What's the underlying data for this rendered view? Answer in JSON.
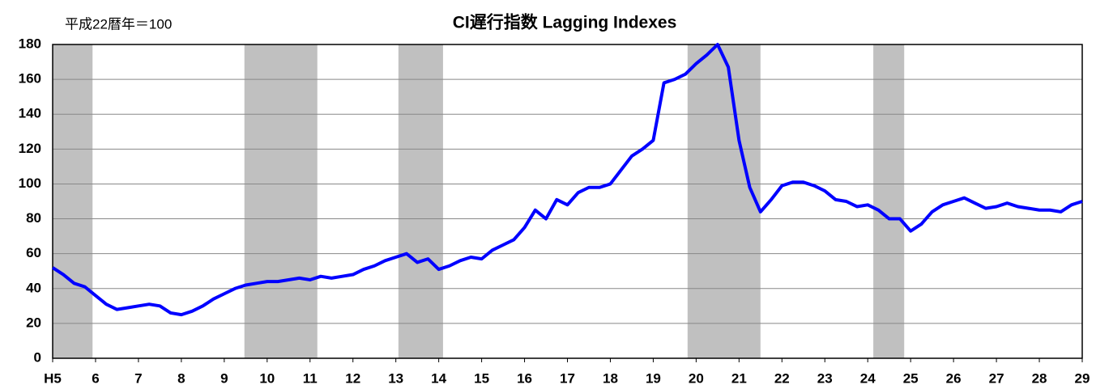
{
  "chart_data": {
    "type": "line",
    "title": "CI遅行指数 Lagging Indexes",
    "subtitle": "平成22暦年＝100",
    "x": [
      5,
      5.25,
      5.5,
      5.75,
      6,
      6.25,
      6.5,
      6.75,
      7,
      7.25,
      7.5,
      7.75,
      8,
      8.25,
      8.5,
      8.75,
      9,
      9.25,
      9.5,
      9.75,
      10,
      10.25,
      10.5,
      10.75,
      11,
      11.25,
      11.5,
      11.75,
      12,
      12.25,
      12.5,
      12.75,
      13,
      13.25,
      13.5,
      13.75,
      14,
      14.25,
      14.5,
      14.75,
      15,
      15.25,
      15.5,
      15.75,
      16,
      16.25,
      16.5,
      16.75,
      17,
      17.25,
      17.5,
      17.75,
      18,
      18.25,
      18.5,
      18.75,
      19,
      19.25,
      19.5,
      19.75,
      20,
      20.25,
      20.5,
      20.75,
      21,
      21.25,
      21.5,
      21.75,
      22,
      22.25,
      22.5,
      22.75,
      23,
      23.25,
      23.5,
      23.75,
      24,
      24.25,
      24.5,
      24.75,
      25,
      25.25,
      25.5,
      25.75,
      26,
      26.25,
      26.5,
      26.75,
      27,
      27.25,
      27.5,
      27.75,
      28,
      28.25,
      28.5,
      28.75,
      29
    ],
    "series": [
      {
        "color": "#0000ff",
        "values": [
          52,
          48,
          43,
          41,
          36,
          31,
          28,
          29,
          30,
          31,
          30,
          26,
          25,
          27,
          30,
          34,
          37,
          40,
          42,
          43,
          44,
          44,
          45,
          46,
          45,
          47,
          46,
          47,
          48,
          51,
          53,
          56,
          58,
          60,
          55,
          57,
          51,
          53,
          56,
          58,
          57,
          62,
          65,
          68,
          75,
          85,
          80,
          91,
          88,
          95,
          98,
          98,
          100,
          108,
          116,
          120,
          125,
          158,
          160,
          163,
          169,
          174,
          180,
          167,
          125,
          98,
          84,
          91,
          99,
          101,
          101,
          99,
          96,
          91,
          90,
          87,
          88,
          85,
          80,
          80,
          73,
          77,
          84,
          88,
          90,
          92,
          89,
          86,
          87,
          89,
          87,
          86,
          85,
          85,
          84,
          88,
          90
        ]
      }
    ],
    "shaded_periods": [
      [
        5,
        5.93
      ],
      [
        9.47,
        11.17
      ],
      [
        13.06,
        14.1
      ],
      [
        19.8,
        21.5
      ],
      [
        24.13,
        24.85
      ]
    ],
    "shade_color": "#c0c0c0",
    "xlim": [
      5,
      29
    ],
    "xticks": [
      {
        "value": 5,
        "label": "H5"
      },
      6,
      7,
      8,
      9,
      10,
      11,
      12,
      13,
      14,
      15,
      16,
      17,
      18,
      19,
      20,
      21,
      22,
      23,
      24,
      25,
      26,
      27,
      28,
      29
    ],
    "ylim": [
      0,
      180
    ],
    "yticks": [
      0,
      20,
      40,
      60,
      80,
      100,
      120,
      140,
      160,
      180
    ],
    "grid": true
  }
}
